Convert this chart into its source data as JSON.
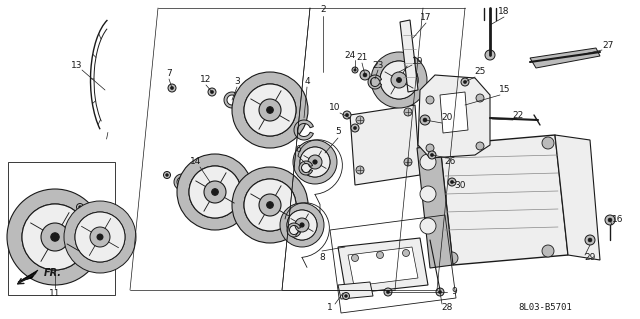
{
  "bg_color": "#ffffff",
  "line_color": "#1a1a1a",
  "diagram_code": "8L03-B5701",
  "fig_width": 6.4,
  "fig_height": 3.19,
  "dpi": 100,
  "gray_fill": "#d8d8d8",
  "light_gray": "#eeeeee",
  "mid_gray": "#bbbbbb",
  "dark_gray": "#888888"
}
